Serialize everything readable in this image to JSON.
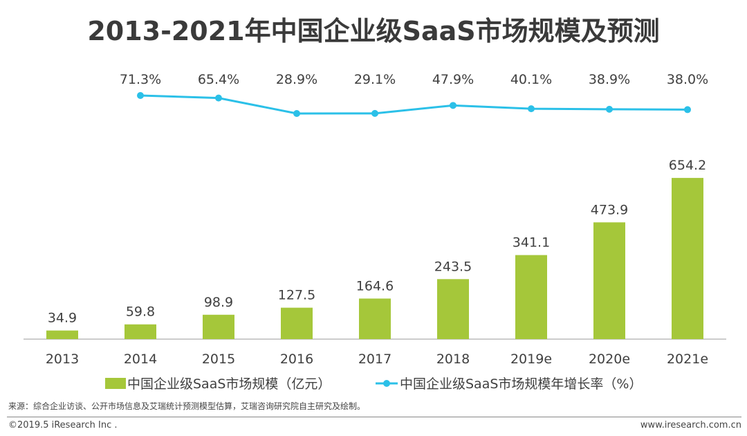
{
  "chart_data": {
    "type": "bar+line",
    "title": "2013-2021年中国企业级SaaS市场规模及预测",
    "categories": [
      "2013",
      "2014",
      "2015",
      "2016",
      "2017",
      "2018",
      "2019e",
      "2020e",
      "2021e"
    ],
    "series": [
      {
        "name": "中国企业级SaaS市场规模（亿元）",
        "type": "bar",
        "color": "#a5c73a",
        "values": [
          34.9,
          59.8,
          98.9,
          127.5,
          164.6,
          243.5,
          341.1,
          473.9,
          654.2
        ],
        "labels": [
          "34.9",
          "59.8",
          "98.9",
          "127.5",
          "164.6",
          "243.5",
          "341.1",
          "473.9",
          "654.2"
        ]
      },
      {
        "name": "中国企业级SaaS市场规模年增长率（%）",
        "type": "line",
        "color": "#2bc0e8",
        "values": [
          null,
          71.3,
          65.4,
          28.9,
          29.1,
          47.9,
          40.1,
          38.9,
          38.0
        ],
        "labels": [
          "",
          "71.3%",
          "65.4%",
          "28.9%",
          "29.1%",
          "47.9%",
          "40.1%",
          "38.9%",
          "38.0%"
        ]
      }
    ],
    "legend": "bottom",
    "grid": false
  },
  "footer": {
    "source": "来源：综合企业访谈、公开市场信息及艾瑞统计预测模型估算，艾瑞咨询研究院自主研究及绘制。",
    "copyright": "©2019.5 iResearch Inc .",
    "website": "www.iresearch.com.cn"
  }
}
